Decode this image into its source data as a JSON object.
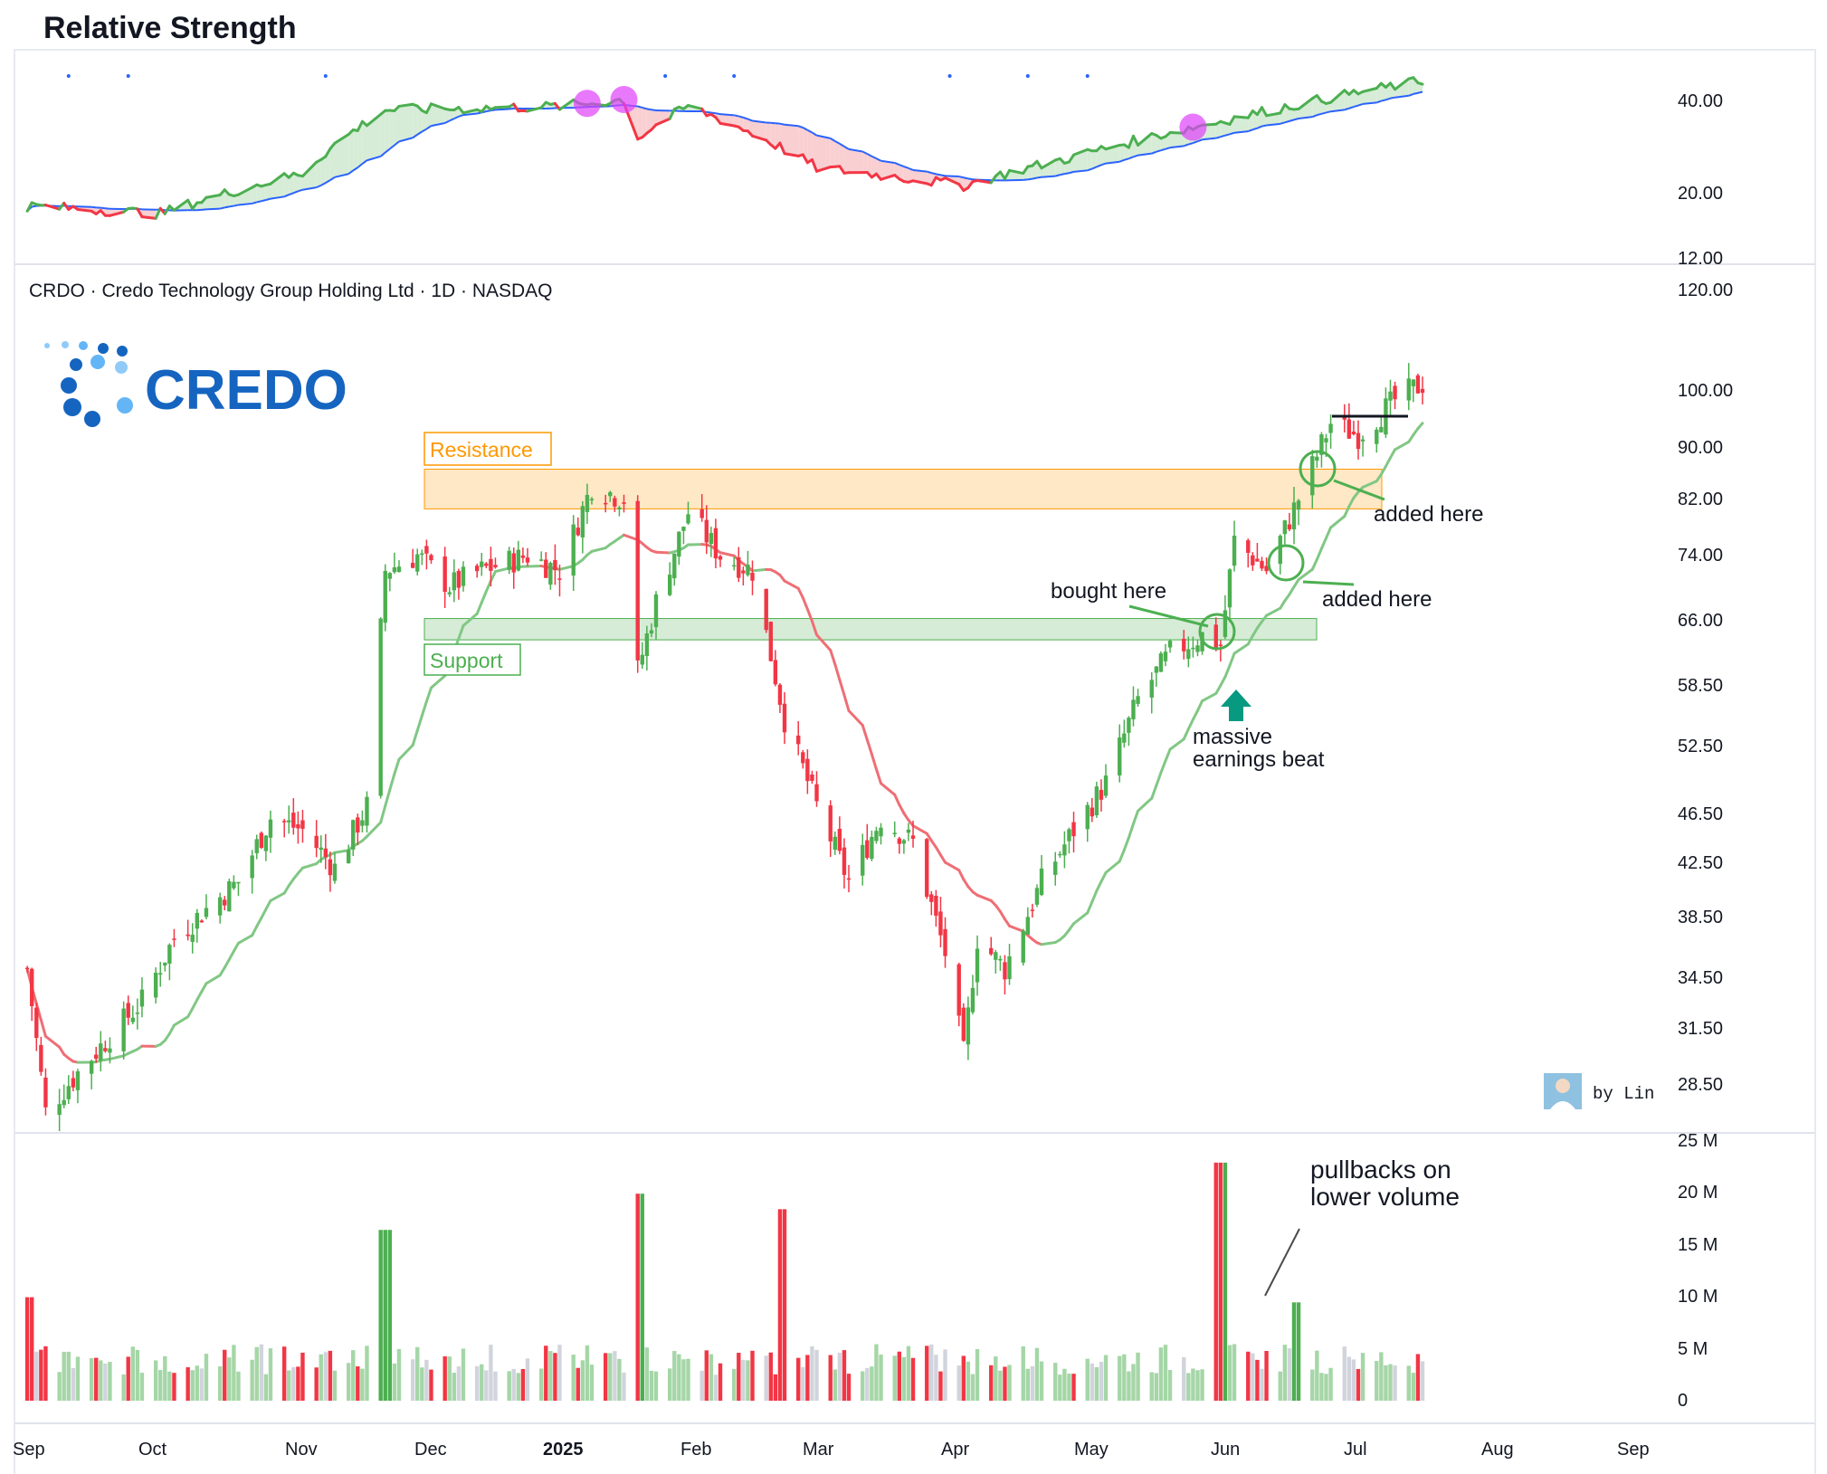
{
  "rs_panel": {
    "title": "Relative Strength",
    "y_ticks": [
      "40.00",
      "20.00",
      "12.00"
    ],
    "colors": {
      "above": "#4caf50",
      "below": "#f23645",
      "ma": "#2962ff",
      "fill_up": "#d6ecd7",
      "fill_down": "#f9cfd2",
      "highlight": "#e040fb"
    }
  },
  "price_panel": {
    "header": "CRDO · Credo Technology Group Holding Ltd · 1D · NASDAQ",
    "logo_text": "CREDO",
    "brand_color": "#1565c0",
    "y_ticks": [
      "120.00",
      "100.00",
      "90.00",
      "82.00",
      "74.00",
      "66.00",
      "58.50",
      "52.50",
      "46.50",
      "42.50",
      "38.50",
      "34.50",
      "31.50",
      "28.50"
    ],
    "resistance_label": "Resistance",
    "support_label": "Support",
    "resistance_zone": [
      80.5,
      86.5
    ],
    "support_zone": [
      63.5,
      66.0
    ],
    "annotations": {
      "bought": "bought here",
      "added1": "added here",
      "added2": "added here",
      "earnings_1": "massive",
      "earnings_2": "earnings beat"
    },
    "credit": "by Lin",
    "colors": {
      "up": "#4caf50",
      "down": "#f23645",
      "ma_fast_up": "#81c784",
      "ma_fast_down": "#ef6e75",
      "resistance": "#ff9800",
      "support": "#4caf50"
    }
  },
  "volume_panel": {
    "y_ticks": [
      "25 M",
      "20 M",
      "15 M",
      "10 M",
      "5 M",
      "0"
    ],
    "annotation_1": "pullbacks on",
    "annotation_2": "lower volume",
    "colors": {
      "up": "#4caf50",
      "down": "#f23645",
      "up_light": "#a5d6a7",
      "neutral": "#d1d4dc",
      "orange": "#ff9800"
    }
  },
  "x_axis": {
    "labels": [
      "Sep",
      "Oct",
      "Nov",
      "Dec",
      "2025",
      "Feb",
      "Mar",
      "Apr",
      "May",
      "Jun",
      "Jul",
      "Aug",
      "Sep"
    ]
  },
  "chart_data": {
    "type": "candlestick",
    "symbol": "CRDO",
    "title": "CRDO · Credo Technology Group Holding Ltd · 1D · NASDAQ",
    "y_scale": "log",
    "ylim": [
      27,
      120
    ],
    "price_closes": [
      {
        "date": "2024-09-16",
        "close": 35
      },
      {
        "date": "2024-09-20",
        "close": 27
      },
      {
        "date": "2024-09-27",
        "close": 29
      },
      {
        "date": "2024-10-04",
        "close": 31
      },
      {
        "date": "2024-10-11",
        "close": 33
      },
      {
        "date": "2024-10-18",
        "close": 37
      },
      {
        "date": "2024-10-25",
        "close": 39
      },
      {
        "date": "2024-11-01",
        "close": 41
      },
      {
        "date": "2024-11-08",
        "close": 46
      },
      {
        "date": "2024-11-15",
        "close": 45
      },
      {
        "date": "2024-11-22",
        "close": 42
      },
      {
        "date": "2024-11-29",
        "close": 47
      },
      {
        "date": "2024-12-03",
        "close": 72
      },
      {
        "date": "2024-12-10",
        "close": 74
      },
      {
        "date": "2024-12-17",
        "close": 70
      },
      {
        "date": "2024-12-24",
        "close": 72
      },
      {
        "date": "2025-01-03",
        "close": 74
      },
      {
        "date": "2025-01-10",
        "close": 72
      },
      {
        "date": "2025-01-17",
        "close": 84
      },
      {
        "date": "2025-01-24",
        "close": 82
      },
      {
        "date": "2025-01-27",
        "close": 60
      },
      {
        "date": "2025-01-31",
        "close": 68
      },
      {
        "date": "2025-02-07",
        "close": 80
      },
      {
        "date": "2025-02-14",
        "close": 74
      },
      {
        "date": "2025-02-21",
        "close": 72
      },
      {
        "date": "2025-02-28",
        "close": 55
      },
      {
        "date": "2025-03-07",
        "close": 47
      },
      {
        "date": "2025-03-14",
        "close": 41
      },
      {
        "date": "2025-03-21",
        "close": 46
      },
      {
        "date": "2025-03-28",
        "close": 44
      },
      {
        "date": "2025-04-04",
        "close": 36
      },
      {
        "date": "2025-04-08",
        "close": 30
      },
      {
        "date": "2025-04-11",
        "close": 37
      },
      {
        "date": "2025-04-17",
        "close": 35
      },
      {
        "date": "2025-04-25",
        "close": 41
      },
      {
        "date": "2025-05-02",
        "close": 45
      },
      {
        "date": "2025-05-09",
        "close": 49
      },
      {
        "date": "2025-05-16",
        "close": 57
      },
      {
        "date": "2025-05-23",
        "close": 62
      },
      {
        "date": "2025-05-30",
        "close": 64
      },
      {
        "date": "2025-06-03",
        "close": 63
      },
      {
        "date": "2025-06-06",
        "close": 76
      },
      {
        "date": "2025-06-13",
        "close": 72
      },
      {
        "date": "2025-06-20",
        "close": 82
      },
      {
        "date": "2025-06-27",
        "close": 94
      },
      {
        "date": "2025-07-03",
        "close": 92
      },
      {
        "date": "2025-07-11",
        "close": 98
      },
      {
        "date": "2025-07-17",
        "close": 101
      }
    ],
    "volume_millions": [
      {
        "date": "2024-09-16",
        "volume": 10
      },
      {
        "date": "2024-12-03",
        "volume": 16.5
      },
      {
        "date": "2025-01-27",
        "volume": 20
      },
      {
        "date": "2025-02-28",
        "volume": 18.5
      },
      {
        "date": "2025-06-03",
        "volume": 23
      },
      {
        "date": "2025-06-20",
        "volume": 9.5
      }
    ],
    "relative_strength": [
      {
        "date": "2024-09-16",
        "rs": 18
      },
      {
        "date": "2024-10-15",
        "rs": 17
      },
      {
        "date": "2024-11-15",
        "rs": 23
      },
      {
        "date": "2024-12-03",
        "rs": 37
      },
      {
        "date": "2025-01-10",
        "rs": 38
      },
      {
        "date": "2025-01-24",
        "rs": 40
      },
      {
        "date": "2025-01-27",
        "rs": 30
      },
      {
        "date": "2025-02-07",
        "rs": 38
      },
      {
        "date": "2025-03-07",
        "rs": 24
      },
      {
        "date": "2025-04-08",
        "rs": 21
      },
      {
        "date": "2025-05-02",
        "rs": 26
      },
      {
        "date": "2025-06-03",
        "rs": 34
      },
      {
        "date": "2025-07-17",
        "rs": 46
      }
    ]
  }
}
